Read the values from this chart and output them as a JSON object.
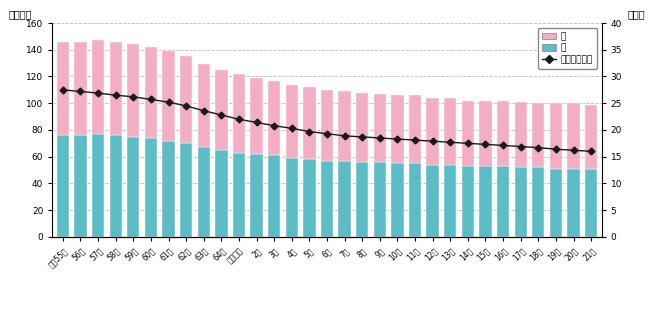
{
  "labels": [
    "昭和55年",
    "56年",
    "57年",
    "58年",
    "59年",
    "60年",
    "61年",
    "62年",
    "63年",
    "64年",
    "平成元年",
    "2年",
    "3年",
    "4年",
    "5年",
    "6年",
    "7年",
    "8年",
    "9年",
    "10年",
    "11年",
    "12年",
    "13年",
    "14年",
    "15年",
    "16年",
    "17年",
    "18年",
    "19年",
    "20年",
    "21年"
  ],
  "male": [
    76,
    76,
    77,
    76,
    75,
    74,
    72,
    70,
    67,
    65,
    63,
    62,
    61,
    59,
    58,
    57,
    57,
    56,
    56,
    55,
    55,
    54,
    54,
    53,
    53,
    53,
    52,
    52,
    51,
    51,
    51
  ],
  "female": [
    70,
    70,
    70,
    70,
    69,
    68,
    67,
    65,
    62,
    60,
    59,
    57,
    56,
    55,
    54,
    53,
    52,
    52,
    51,
    51,
    51,
    50,
    50,
    49,
    49,
    49,
    49,
    48,
    49,
    49,
    48
  ],
  "ratio": [
    27.5,
    27.2,
    26.9,
    26.5,
    26.2,
    25.7,
    25.2,
    24.5,
    23.6,
    22.8,
    22.0,
    21.4,
    20.8,
    20.3,
    19.7,
    19.3,
    18.9,
    18.7,
    18.5,
    18.3,
    18.1,
    17.9,
    17.7,
    17.5,
    17.3,
    17.1,
    16.9,
    16.7,
    16.4,
    16.2,
    16.0
  ],
  "bar_color_male": "#5dbdc6",
  "bar_color_female": "#f4aec4",
  "line_color": "#1a1a1a",
  "ylabel_left": "（万人）",
  "ylabel_right": "（％）",
  "legend_female": "女",
  "legend_male": "男",
  "legend_ratio": "構成比（％）",
  "grid_color": "#bbbbbb"
}
